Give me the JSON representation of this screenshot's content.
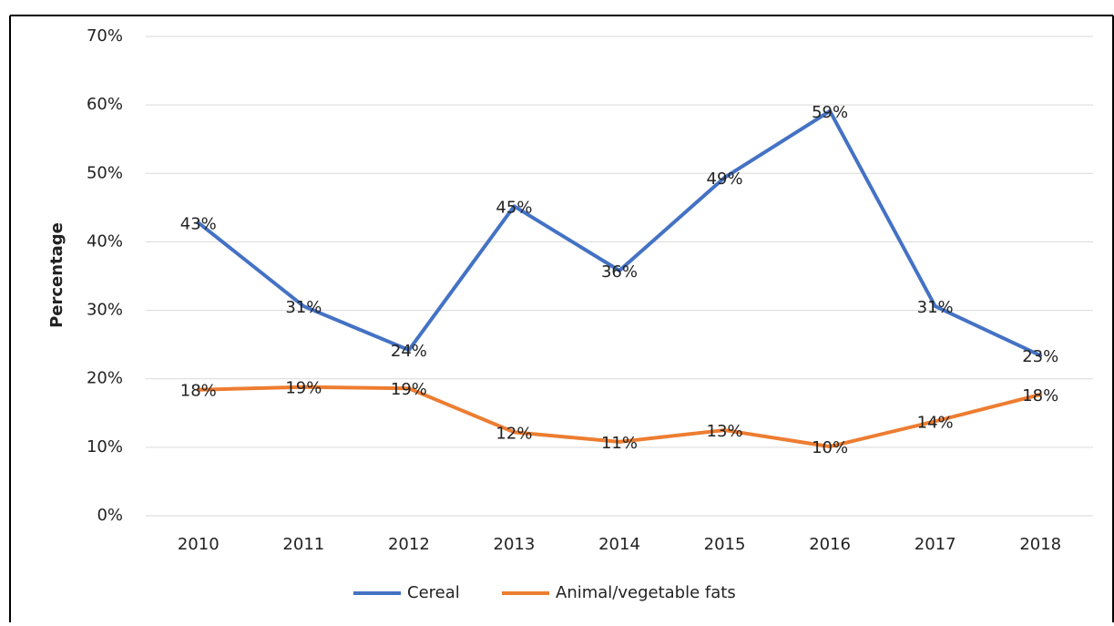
{
  "chart_data": {
    "type": "line",
    "y_label": "Percentage",
    "categories": [
      "2010",
      "2011",
      "2012",
      "2013",
      "2014",
      "2015",
      "2016",
      "2017",
      "2018"
    ],
    "series": [
      {
        "name": "Cereal",
        "color": "#4472c4",
        "values": [
          42.8,
          30.6,
          24.2,
          45.2,
          35.8,
          49.4,
          59.1,
          30.6,
          23.4
        ],
        "value_labels": [
          "43%",
          "31%",
          "24%",
          "45%",
          "36%",
          "49%",
          "59%",
          "31%",
          "23%"
        ]
      },
      {
        "name": "Animal/vegetable fats",
        "color": "#ed7d31",
        "values": [
          18.4,
          18.8,
          18.6,
          12.2,
          10.8,
          12.5,
          10.1,
          13.8,
          17.7
        ],
        "value_labels": [
          "18%",
          "19%",
          "19%",
          "12%",
          "11%",
          "13%",
          "10%",
          "14%",
          "18%"
        ]
      }
    ],
    "ylim": [
      0,
      70
    ],
    "yticks": [
      {
        "value": 0,
        "label": "0%"
      },
      {
        "value": 10,
        "label": "10%"
      },
      {
        "value": 20,
        "label": "20%"
      },
      {
        "value": 30,
        "label": "30%"
      },
      {
        "value": 40,
        "label": "40%"
      },
      {
        "value": 50,
        "label": "50%"
      },
      {
        "value": 60,
        "label": "60%"
      },
      {
        "value": 70,
        "label": "70%"
      }
    ],
    "grid": true,
    "legend": "bottom"
  }
}
